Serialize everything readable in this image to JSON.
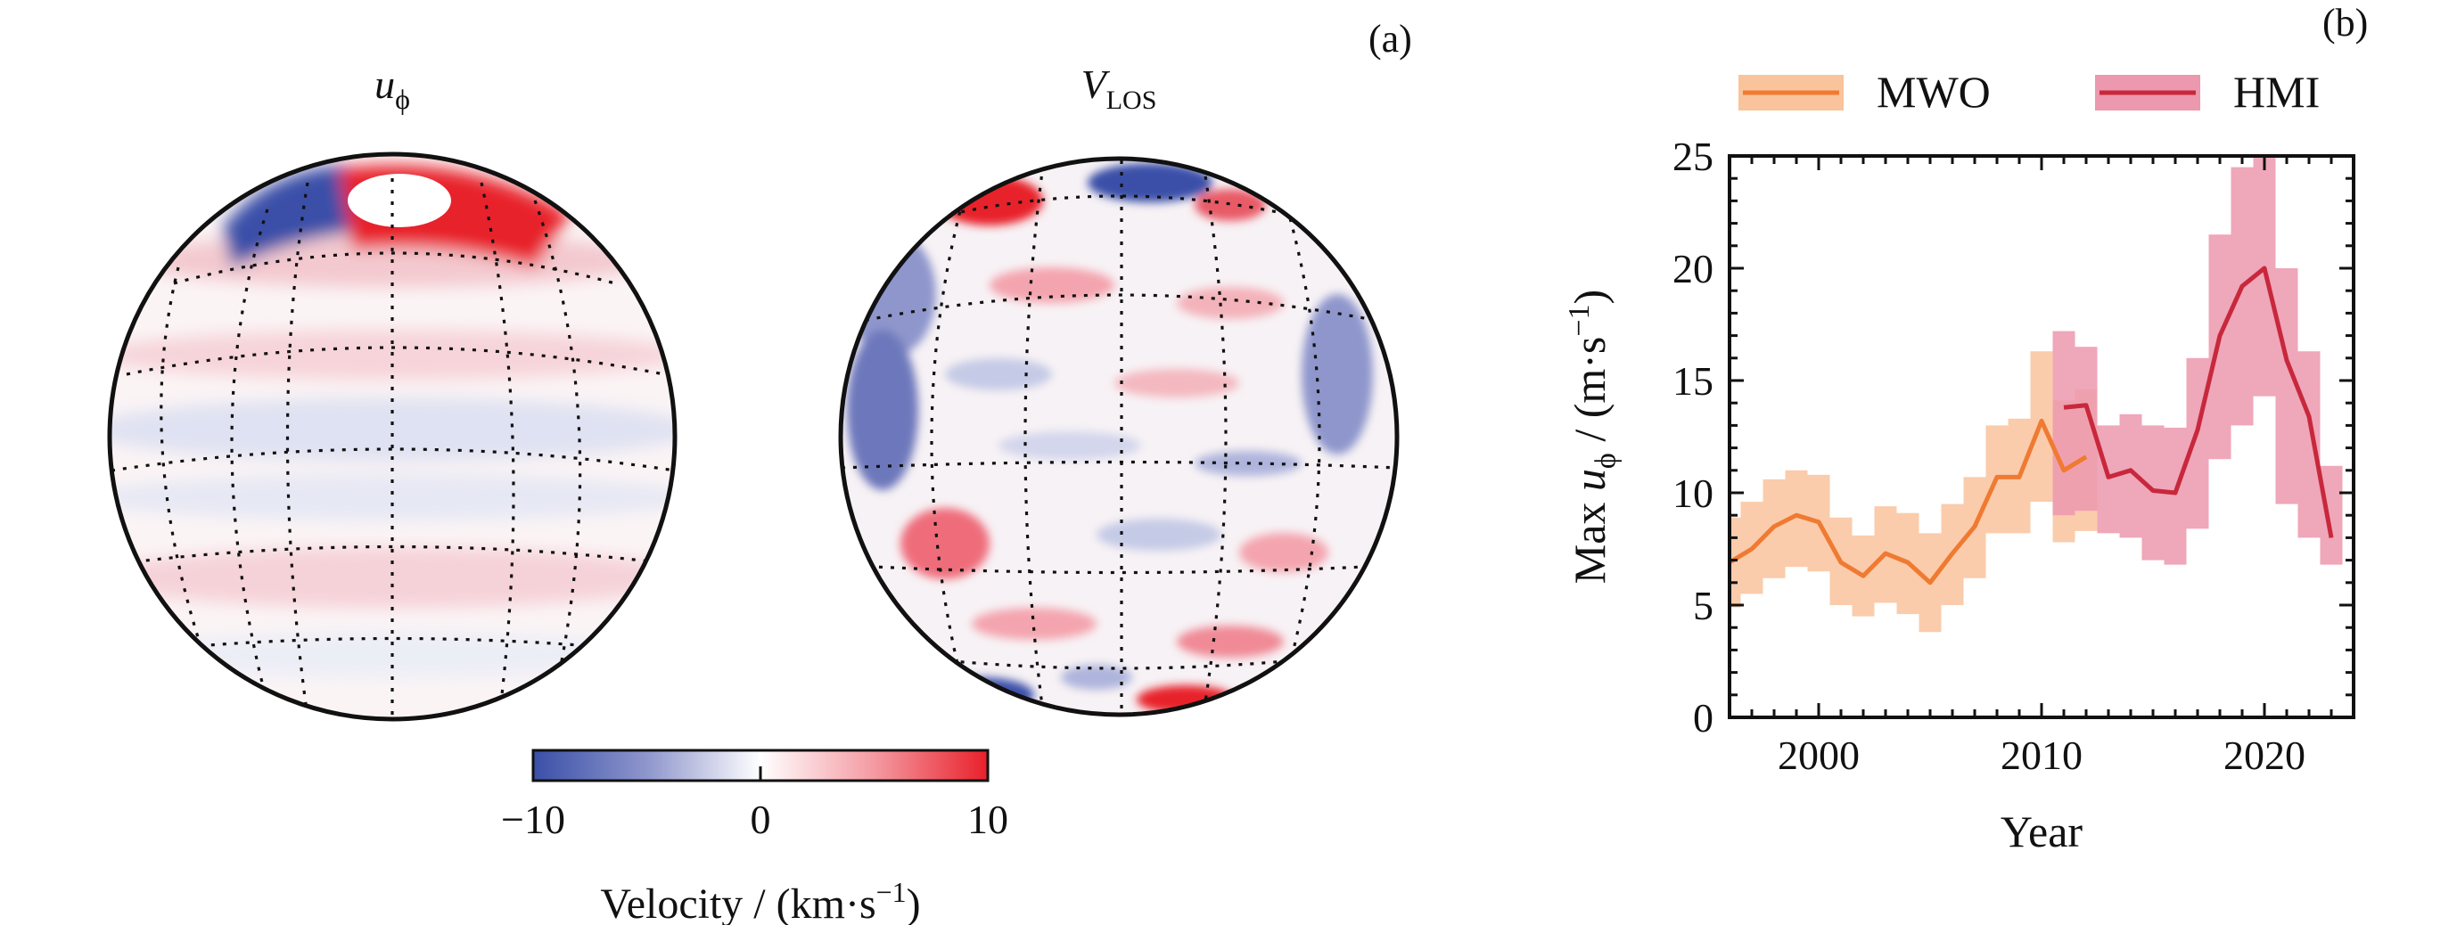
{
  "panel_a": {
    "tag": "(a)",
    "globe_left": {
      "title_symbol": "u",
      "title_subscript": "ϕ"
    },
    "globe_right": {
      "title_symbol": "V",
      "title_subscript": "LOS"
    },
    "colorbar": {
      "label_main": "Velocity / (km·s",
      "label_sup": "−1",
      "label_close": ")",
      "ticks": [
        "−10",
        "0",
        "10"
      ],
      "tick_values": [
        -10,
        0,
        10
      ],
      "range": [
        -10,
        10
      ],
      "colormap": [
        "#3a4fa8",
        "#ffffff",
        "#e8202a"
      ]
    }
  },
  "chart_data": {
    "type": "line",
    "panel_tag": "(b)",
    "xlabel": "Year",
    "ylabel_prefix": "Max ",
    "ylabel_symbol": "u",
    "ylabel_subscript": "ϕ",
    "ylabel_units": " / (m·s",
    "ylabel_sup": "−1",
    "ylabel_close": ")",
    "xlim": [
      1996,
      2024
    ],
    "ylim": [
      0,
      25
    ],
    "xticks": [
      2000,
      2010,
      2020
    ],
    "yticks": [
      0,
      5,
      10,
      15,
      20,
      25
    ],
    "legend_position": "top",
    "series": [
      {
        "name": "MWO",
        "color": "#f07a32",
        "band_color": "#f9c39c",
        "x": [
          1996,
          1997,
          1998,
          1999,
          2000,
          2001,
          2002,
          2003,
          2004,
          2005,
          2006,
          2007,
          2008,
          2009,
          2010,
          2011,
          2012
        ],
        "values": [
          6.9,
          7.5,
          8.5,
          9.0,
          8.7,
          6.9,
          6.3,
          7.3,
          6.9,
          6.0,
          7.3,
          8.5,
          10.7,
          10.7,
          13.2,
          11.0,
          11.6
        ],
        "lower": [
          4.9,
          5.5,
          6.2,
          6.7,
          6.5,
          5.0,
          4.5,
          5.1,
          4.6,
          3.8,
          5.0,
          6.2,
          8.2,
          8.2,
          9.6,
          7.8,
          8.3
        ],
        "upper": [
          8.9,
          9.6,
          10.6,
          11.0,
          10.8,
          8.9,
          8.1,
          9.4,
          9.1,
          8.2,
          9.5,
          10.7,
          13.0,
          13.3,
          16.3,
          14.1,
          14.6
        ]
      },
      {
        "name": "HMI",
        "color": "#c8283c",
        "band_color": "#ec98ae",
        "x": [
          2011,
          2012,
          2013,
          2014,
          2015,
          2016,
          2017,
          2018,
          2019,
          2020,
          2021,
          2022,
          2023
        ],
        "values": [
          13.8,
          13.9,
          10.7,
          11.0,
          10.1,
          10.0,
          12.8,
          17.0,
          19.2,
          20.0,
          15.9,
          13.4,
          8.0
        ],
        "lower": [
          9.0,
          9.2,
          8.2,
          8.0,
          7.0,
          6.8,
          8.4,
          11.5,
          13.0,
          14.3,
          9.5,
          8.0,
          6.8
        ],
        "upper": [
          17.2,
          16.5,
          13.0,
          13.5,
          13.0,
          12.9,
          16.0,
          21.5,
          24.5,
          25.0,
          20.0,
          16.3,
          11.2
        ]
      }
    ]
  }
}
